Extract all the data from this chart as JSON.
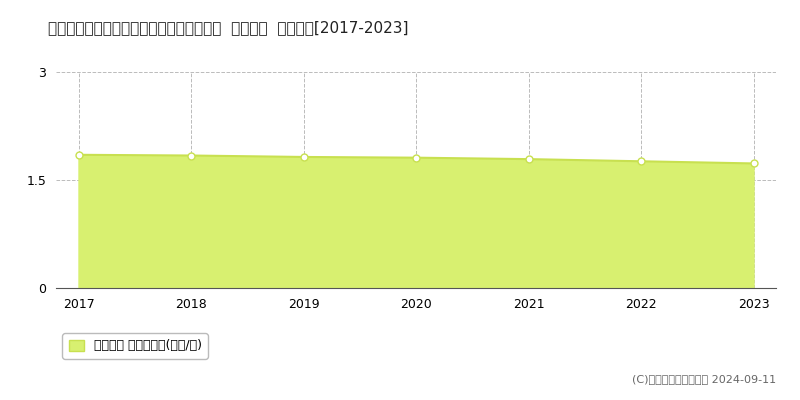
{
  "title": "青森県東津軽郡外ヶ浜町字蟹田１１５番５  地価公示  地価推移[2017-2023]",
  "years": [
    2017,
    2018,
    2019,
    2020,
    2021,
    2022,
    2023
  ],
  "values": [
    1.85,
    1.84,
    1.82,
    1.81,
    1.79,
    1.76,
    1.73
  ],
  "ylim": [
    0,
    3
  ],
  "yticks": [
    0,
    1.5,
    3
  ],
  "line_color": "#c8e050",
  "fill_color": "#d8f070",
  "marker_face": "white",
  "bg_color": "#ffffff",
  "grid_color": "#aaaaaa",
  "legend_label": "地価公示 平均坪単価(万円/坪)",
  "copyright_text": "(C)土地価格ドットコム 2024-09-11",
  "title_fontsize": 11,
  "axis_fontsize": 9,
  "legend_fontsize": 9,
  "copyright_fontsize": 8
}
